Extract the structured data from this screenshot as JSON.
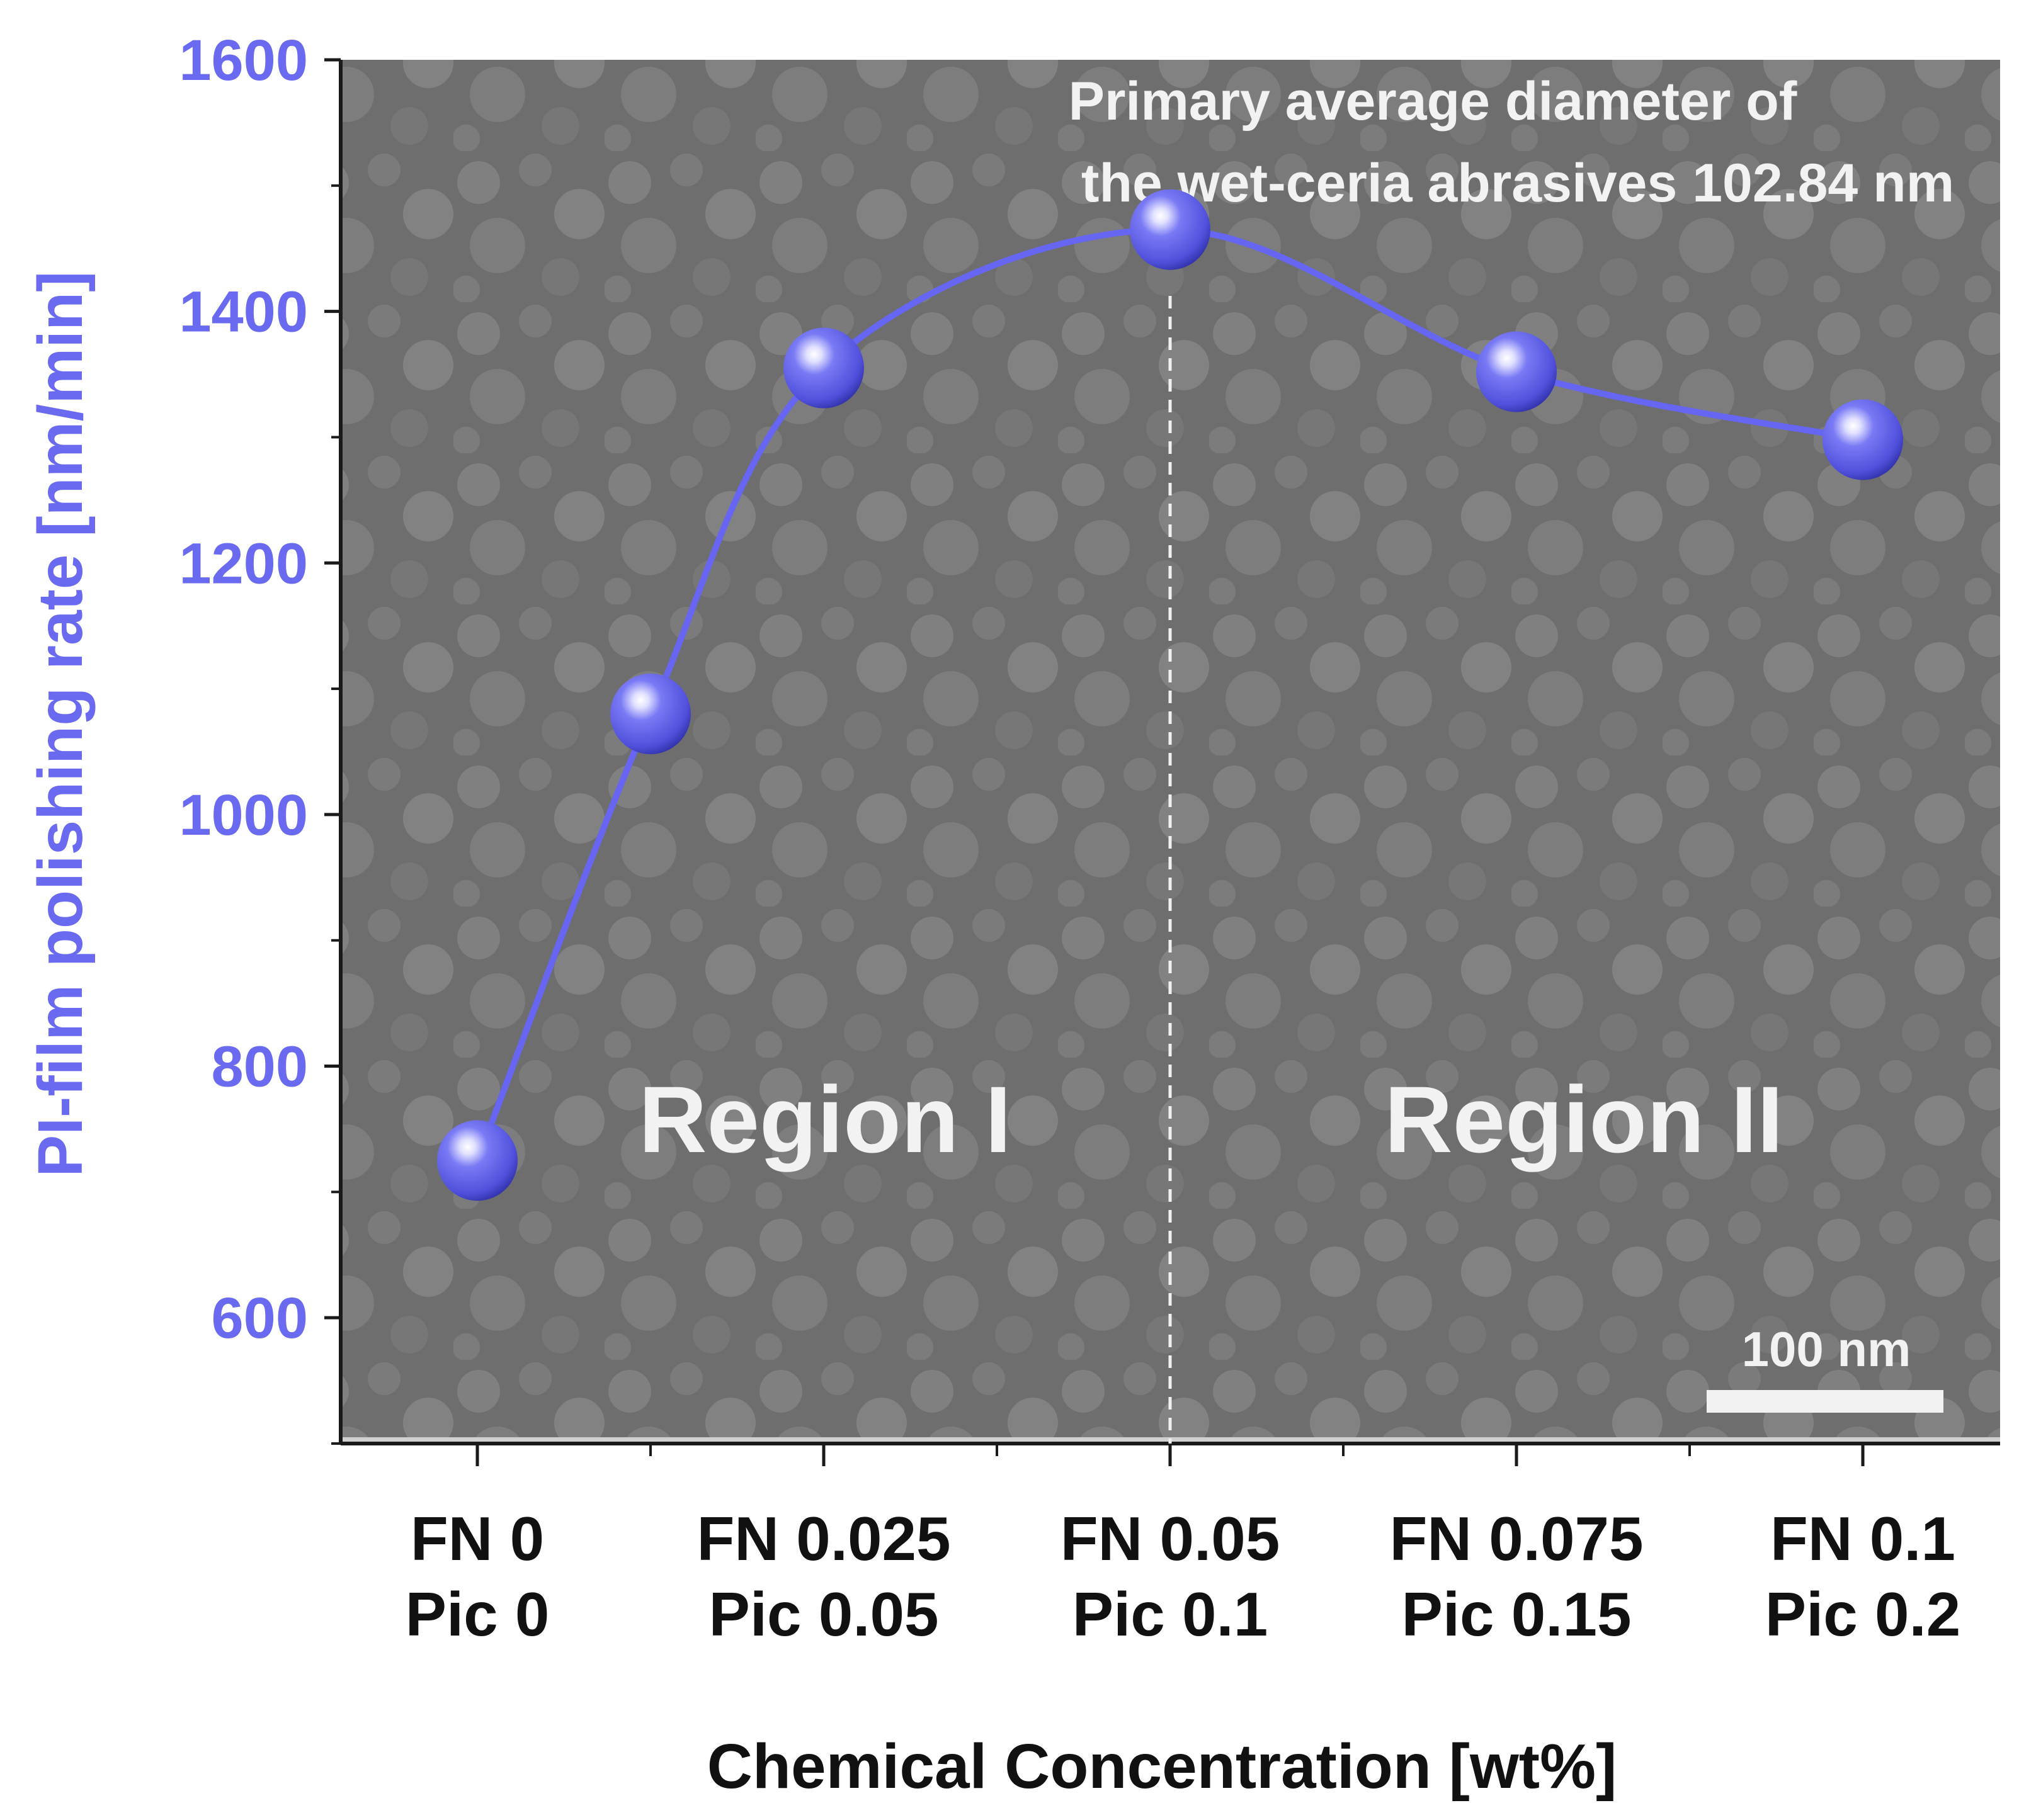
{
  "colors": {
    "series": "#6666f2",
    "axis": "#1a1a1a",
    "ylabel": "#6a6af0",
    "annotation": "#f2f2f2",
    "sem_background": "#6e6e6e"
  },
  "chart_data": {
    "type": "line",
    "xlabel": "Chemical Concentration [wt%]",
    "ylabel": "PI-film polishing rate [nm/min]",
    "ylim": [
      500,
      1600
    ],
    "yticks": [
      600,
      800,
      1000,
      1200,
      1400,
      1600
    ],
    "x_minor_ticks": true,
    "grid": false,
    "legend": "none",
    "categories": [
      {
        "line1": "FN 0",
        "line2": "Pic 0"
      },
      {
        "line1": "FN 0.025",
        "line2": "Pic 0.05"
      },
      {
        "line1": "FN 0.05",
        "line2": "Pic 0.1"
      },
      {
        "line1": "FN 0.075",
        "line2": "Pic 0.15"
      },
      {
        "line1": "FN 0.1",
        "line2": "Pic 0.2"
      }
    ],
    "series": [
      {
        "x": [
          0,
          0.5,
          1,
          2,
          3,
          4
        ],
        "values": [
          725,
          1080,
          1355,
          1465,
          1352,
          1298
        ]
      }
    ],
    "annotations": {
      "header_line1": "Primary average diameter of",
      "header_line2": "the  wet-ceria abrasives 102.84 nm",
      "region1": "Region I",
      "region2": "Region II",
      "scale_bar": "100 nm",
      "divider_at_x": 2
    }
  }
}
